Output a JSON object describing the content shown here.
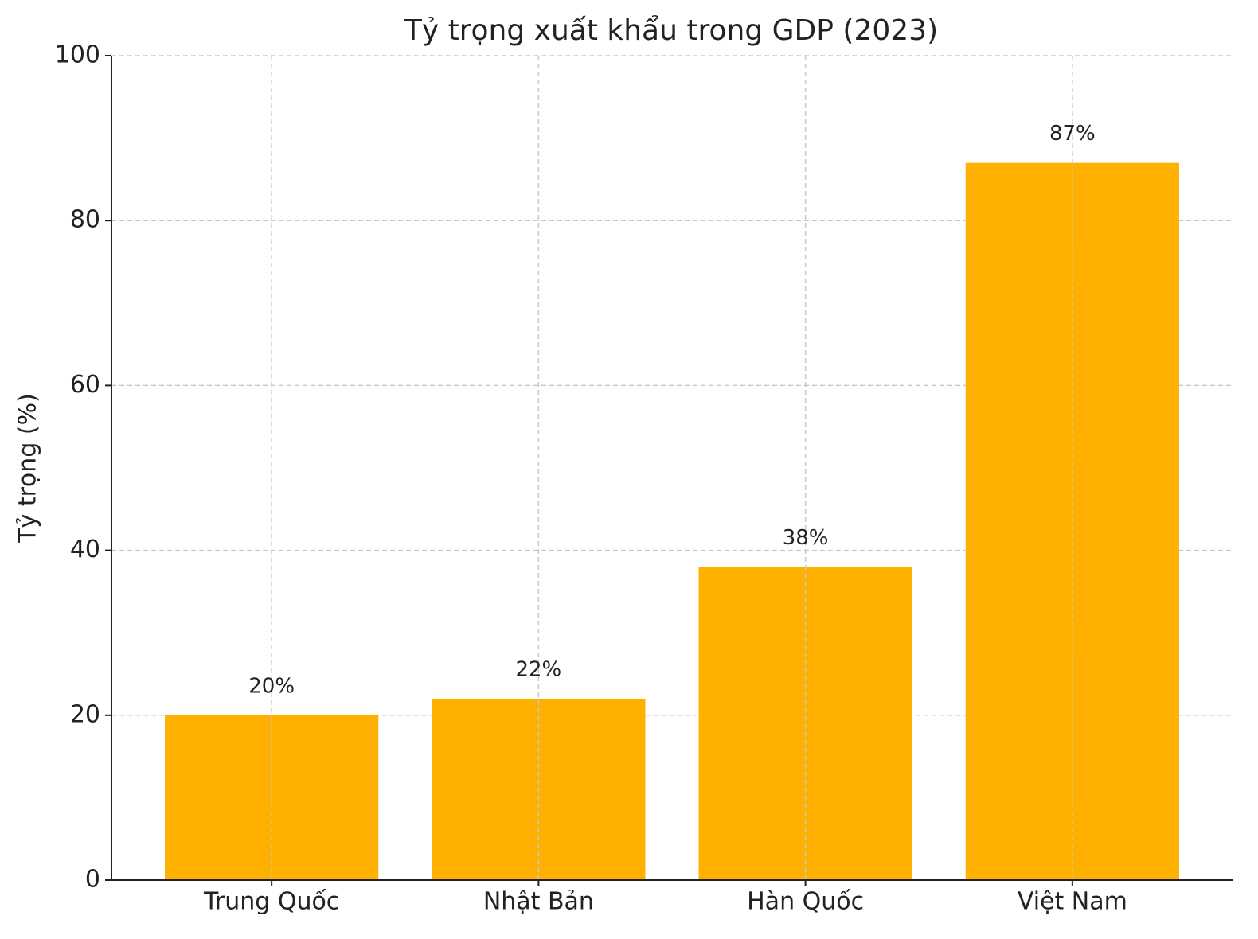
{
  "chart_data": {
    "type": "bar",
    "title": "Tỷ trọng xuất khẩu trong GDP (2023)",
    "y_label": "Tỷ trọng (%)",
    "categories": [
      "Trung Quốc",
      "Nhật Bản",
      "Hàn Quốc",
      "Việt Nam"
    ],
    "values": [
      20,
      22,
      38,
      87
    ],
    "value_labels": [
      "20%",
      "22%",
      "38%",
      "87%"
    ],
    "color": "#ffb000",
    "ylim": [
      0,
      100
    ],
    "yticks": [
      0,
      20,
      40,
      60,
      80,
      100
    ],
    "grid": true
  }
}
